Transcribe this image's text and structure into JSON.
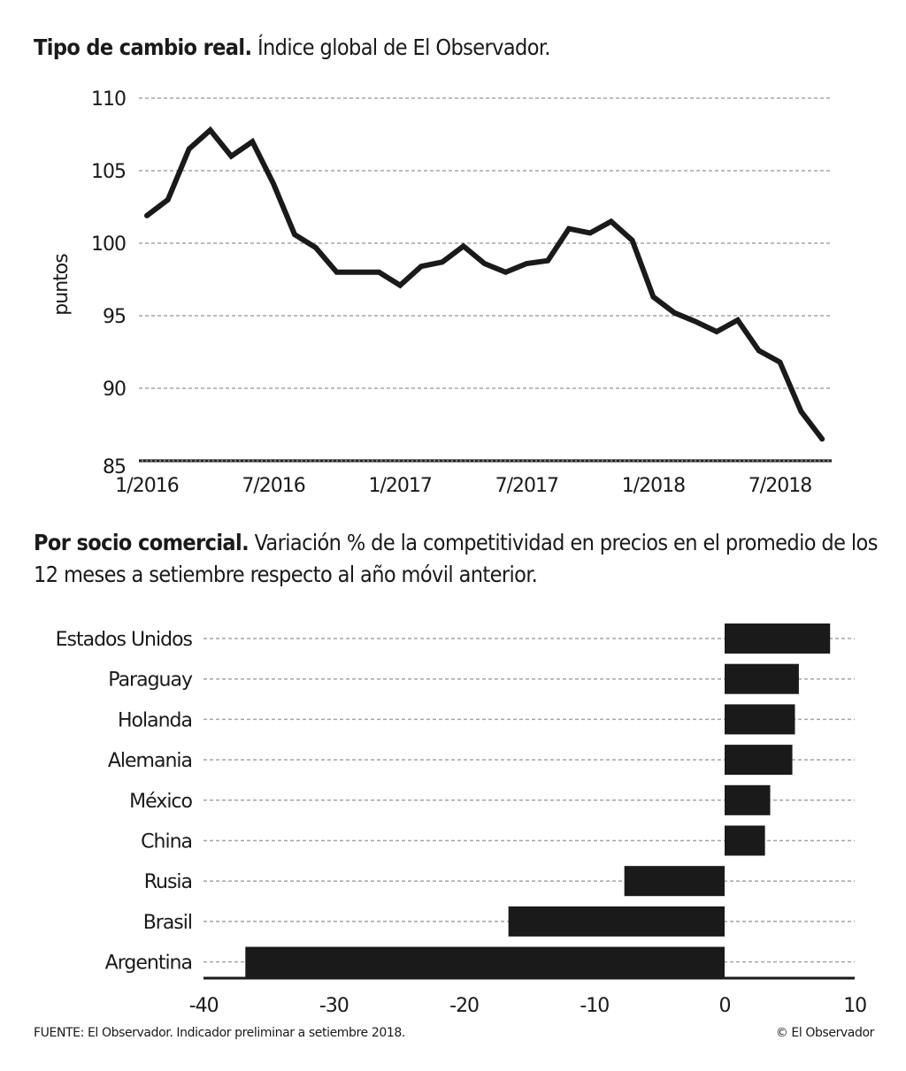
{
  "chart_data": [
    {
      "type": "line",
      "title_bold": "Tipo de cambio real.",
      "title_rest": "Índice global de El Observador.",
      "xlabel": "",
      "ylabel": "puntos",
      "ylim": [
        85,
        110
      ],
      "yticks": [
        110,
        105,
        100,
        95,
        90,
        85
      ],
      "xtick_labels": [
        "1/2016",
        "7/2016",
        "1/2017",
        "7/2017",
        "1/2018",
        "7/2018"
      ],
      "xtick_month_index": [
        0,
        6,
        12,
        18,
        24,
        30
      ],
      "grid": true,
      "x": [
        "1/2016",
        "2/2016",
        "3/2016",
        "4/2016",
        "5/2016",
        "6/2016",
        "7/2016",
        "8/2016",
        "9/2016",
        "10/2016",
        "11/2016",
        "12/2016",
        "1/2017",
        "2/2017",
        "3/2017",
        "4/2017",
        "5/2017",
        "6/2017",
        "7/2017",
        "8/2017",
        "9/2017",
        "10/2017",
        "11/2017",
        "12/2017",
        "1/2018",
        "2/2018",
        "3/2018",
        "4/2018",
        "5/2018",
        "6/2018",
        "7/2018",
        "8/2018",
        "9/2018"
      ],
      "series": [
        {
          "name": "Índice global",
          "color": "#1a1a1a",
          "values": [
            101.9,
            103.0,
            106.5,
            107.8,
            106.0,
            107.0,
            104.1,
            100.6,
            99.7,
            98.0,
            98.0,
            98.0,
            97.1,
            98.4,
            98.7,
            99.8,
            98.6,
            98.0,
            98.6,
            98.8,
            101.0,
            100.7,
            101.5,
            100.2,
            96.3,
            95.2,
            94.6,
            93.9,
            94.7,
            92.6,
            91.8,
            88.4,
            86.5
          ]
        }
      ]
    },
    {
      "type": "bar",
      "orientation": "horizontal",
      "title_bold": "Por socio comercial.",
      "title_rest": "Variación % de la competitividad en precios en el promedio de los 12 meses a setiembre respecto al año móvil anterior.",
      "categories": [
        "Estados Unidos",
        "Paraguay",
        "Holanda",
        "Alemania",
        "México",
        "China",
        "Rusia",
        "Brasil",
        "Argentina"
      ],
      "values": [
        8.1,
        5.7,
        5.4,
        5.2,
        3.5,
        3.1,
        -7.7,
        -16.6,
        -36.8
      ],
      "xlim": [
        -40,
        10
      ],
      "xticks": [
        -40,
        -30,
        -20,
        -10,
        0,
        10
      ],
      "xlabel": "",
      "ylabel": "",
      "grid": true,
      "bar_color": "#1a1a1a"
    }
  ],
  "footer": {
    "source": "FUENTE: El Observador. Indicador preliminar a setiembre 2018.",
    "copyright": "© El Observador"
  }
}
